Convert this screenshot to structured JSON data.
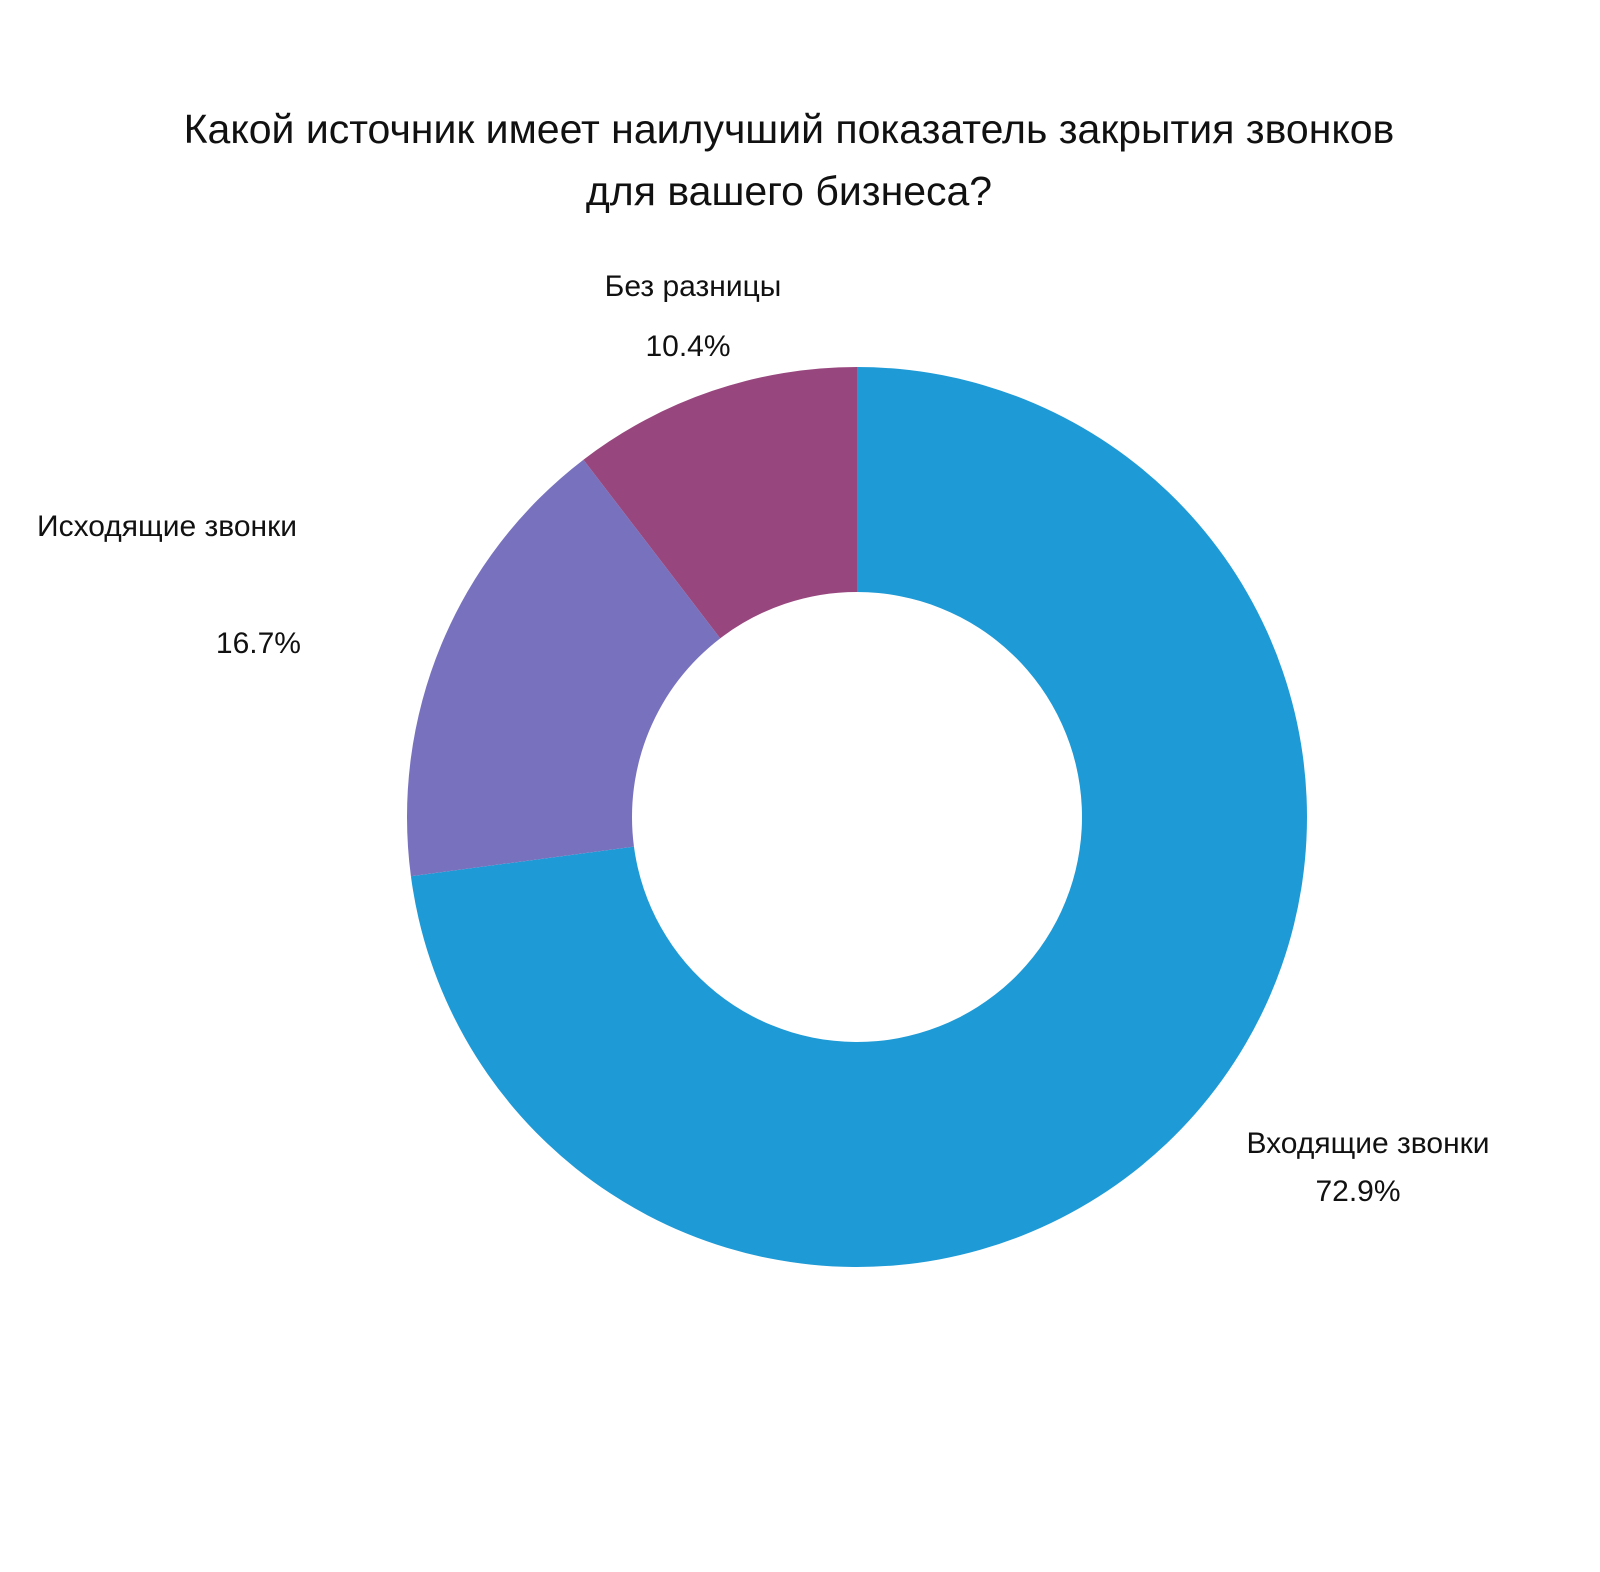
{
  "chart_data": {
    "type": "pie",
    "donut": true,
    "title_lines": [
      "Какой источник имеет наилучший показатель закрытия звонков",
      "для вашего бизнеса?"
    ],
    "slices": [
      {
        "label": "Входящие звонки",
        "value": 72.9,
        "value_label": "72.9%",
        "color": "#1E9AD6"
      },
      {
        "label": "Исходящие звонки",
        "value": 16.7,
        "value_label": "16.7%",
        "color": "#7872BE"
      },
      {
        "label": "Без разницы",
        "value": 10.4,
        "value_label": "10.4%",
        "color": "#98477E"
      }
    ],
    "start_angle": "top",
    "direction": "clockwise",
    "legend": "none"
  }
}
